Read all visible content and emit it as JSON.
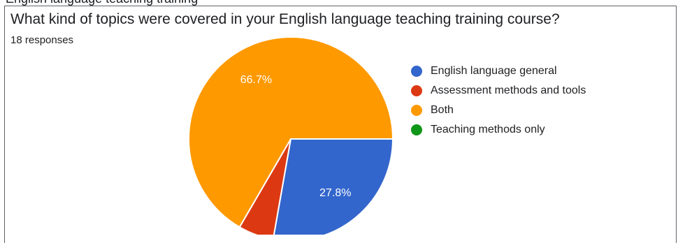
{
  "chart_data": {
    "type": "pie",
    "title": "What kind of topics were covered in your English language teaching training course?",
    "subtitle": "18 responses",
    "slices": [
      {
        "name": "English language general",
        "value": 27.8,
        "label": "27.8%",
        "color": "#3366cc"
      },
      {
        "name": "Assessment methods and tools",
        "value": 5.6,
        "label": "",
        "color": "#dc3912"
      },
      {
        "name": "Both",
        "value": 66.7,
        "label": "66.7%",
        "color": "#ff9900"
      },
      {
        "name": "Teaching methods only",
        "value": 0,
        "label": "",
        "color": "#109618"
      }
    ],
    "legend_position": "right"
  },
  "above_text": "English language teaching training"
}
